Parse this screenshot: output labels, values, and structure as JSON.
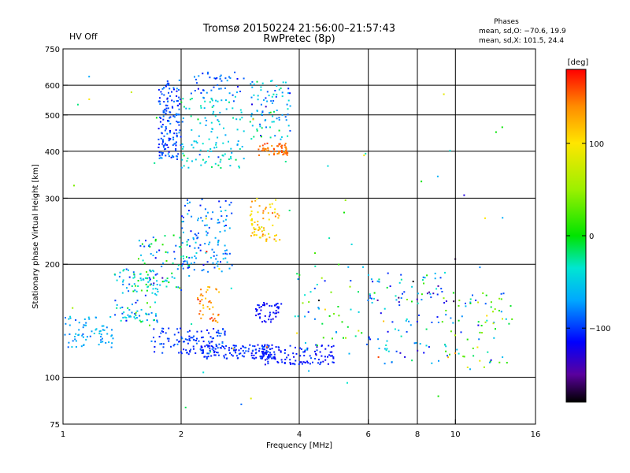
{
  "chart_data": {
    "type": "scatter",
    "title": "Tromsø 20150224 21:56:00–21:57:43",
    "subtitle": "RwPretec (8p)",
    "status_text": "HV Off",
    "status_color": "#cc0000",
    "xlabel": "Frequency [MHz]",
    "ylabel": "Stationary phase Virtual Height [km]",
    "x_scale": "log",
    "y_scale": "log",
    "xlim": [
      1,
      16
    ],
    "ylim": [
      75,
      750
    ],
    "x_ticks": [
      {
        "value": 1,
        "label": "1"
      },
      {
        "value": 2,
        "label": "2"
      },
      {
        "value": 4,
        "label": "4"
      },
      {
        "value": 6,
        "label": "6"
      },
      {
        "value": 8,
        "label": "8"
      },
      {
        "value": 10,
        "label": "10"
      },
      {
        "value": 16,
        "label": "16"
      }
    ],
    "x_gridlines": [
      2,
      4,
      6,
      8,
      10
    ],
    "y_ticks": [
      {
        "value": 75,
        "label": "75"
      },
      {
        "value": 100,
        "label": "100"
      },
      {
        "value": 200,
        "label": "200"
      },
      {
        "value": 300,
        "label": "300"
      },
      {
        "value": 400,
        "label": "400"
      },
      {
        "value": 500,
        "label": "500"
      },
      {
        "value": 600,
        "label": "600"
      },
      {
        "value": 750,
        "label": "750"
      }
    ],
    "y_gridlines": [
      100,
      200,
      300,
      400,
      500,
      600
    ],
    "stats": {
      "header": "Phases",
      "line_o": "mean, sd,O: −70.6, 19.9",
      "line_x": "mean, sd,X: 101.5, 24.4"
    },
    "colorbar": {
      "label": "[deg]",
      "range": [
        -180,
        180
      ],
      "ticks": [
        {
          "value": 100,
          "label": "100"
        },
        {
          "value": 0,
          "label": "0"
        },
        {
          "value": -100,
          "label": "−100"
        }
      ],
      "stops": [
        {
          "v": -180,
          "c": "#000000"
        },
        {
          "v": -150,
          "c": "#5a009e"
        },
        {
          "v": -115,
          "c": "#0000ff"
        },
        {
          "v": -70,
          "c": "#00a8ff"
        },
        {
          "v": -35,
          "c": "#00e6d2"
        },
        {
          "v": 0,
          "c": "#00e400"
        },
        {
          "v": 50,
          "c": "#9cf000"
        },
        {
          "v": 100,
          "c": "#ffe600"
        },
        {
          "v": 140,
          "c": "#ff8c00"
        },
        {
          "v": 180,
          "c": "#ff0000"
        }
      ]
    },
    "clusters": [
      {
        "f": [
          1.0,
          1.35
        ],
        "h": [
          120,
          145
        ],
        "phase": -70,
        "sd": 18,
        "n": 70
      },
      {
        "f": [
          1.35,
          1.75
        ],
        "h": [
          140,
          195
        ],
        "phase": -55,
        "sd": 45,
        "n": 110
      },
      {
        "f": [
          1.55,
          2.1
        ],
        "h": [
          170,
          240
        ],
        "phase": -40,
        "sd": 60,
        "n": 80
      },
      {
        "f": [
          1.7,
          2.6
        ],
        "h": [
          115,
          135
        ],
        "phase": -100,
        "sd": 15,
        "n": 110
      },
      {
        "f": [
          2.25,
          3.5
        ],
        "h": [
          112,
          122
        ],
        "phase": -105,
        "sd": 12,
        "n": 130
      },
      {
        "f": [
          3.2,
          4.9
        ],
        "h": [
          108,
          122
        ],
        "phase": -110,
        "sd": 12,
        "n": 110
      },
      {
        "f": [
          3.1,
          3.6
        ],
        "h": [
          140,
          158
        ],
        "phase": -115,
        "sd": 10,
        "n": 50
      },
      {
        "f": [
          1.75,
          2.0
        ],
        "h": [
          380,
          620
        ],
        "phase": -95,
        "sd": 20,
        "n": 160
      },
      {
        "f": [
          2.0,
          2.7
        ],
        "h": [
          190,
          300
        ],
        "phase": -80,
        "sd": 25,
        "n": 120
      },
      {
        "f": [
          2.2,
          2.5
        ],
        "h": [
          140,
          175
        ],
        "phase": 140,
        "sd": 25,
        "n": 40
      },
      {
        "f": [
          2.0,
          2.9
        ],
        "h": [
          360,
          560
        ],
        "phase": -45,
        "sd": 30,
        "n": 120
      },
      {
        "f": [
          2.1,
          2.9
        ],
        "h": [
          560,
          650
        ],
        "phase": -90,
        "sd": 20,
        "n": 40
      },
      {
        "f": [
          3.0,
          3.6
        ],
        "h": [
          230,
          300
        ],
        "phase": 115,
        "sd": 25,
        "n": 70
      },
      {
        "f": [
          3.15,
          3.75
        ],
        "h": [
          390,
          420
        ],
        "phase": 150,
        "sd": 15,
        "n": 60
      },
      {
        "f": [
          3.0,
          3.8
        ],
        "h": [
          430,
          620
        ],
        "phase": -65,
        "sd": 40,
        "n": 90
      },
      {
        "f": [
          3.9,
          6.0
        ],
        "h": [
          115,
          200
        ],
        "phase": -30,
        "sd": 70,
        "n": 50
      },
      {
        "f": [
          6.0,
          9.5
        ],
        "h": [
          108,
          190
        ],
        "phase": -60,
        "sd": 70,
        "n": 110
      },
      {
        "f": [
          9.5,
          14.0
        ],
        "h": [
          105,
          170
        ],
        "phase": 0,
        "sd": 90,
        "n": 70
      },
      {
        "f": [
          1.0,
          14.0
        ],
        "h": [
          75,
          650
        ],
        "phase": 0,
        "sd": 110,
        "n": 60
      }
    ]
  }
}
